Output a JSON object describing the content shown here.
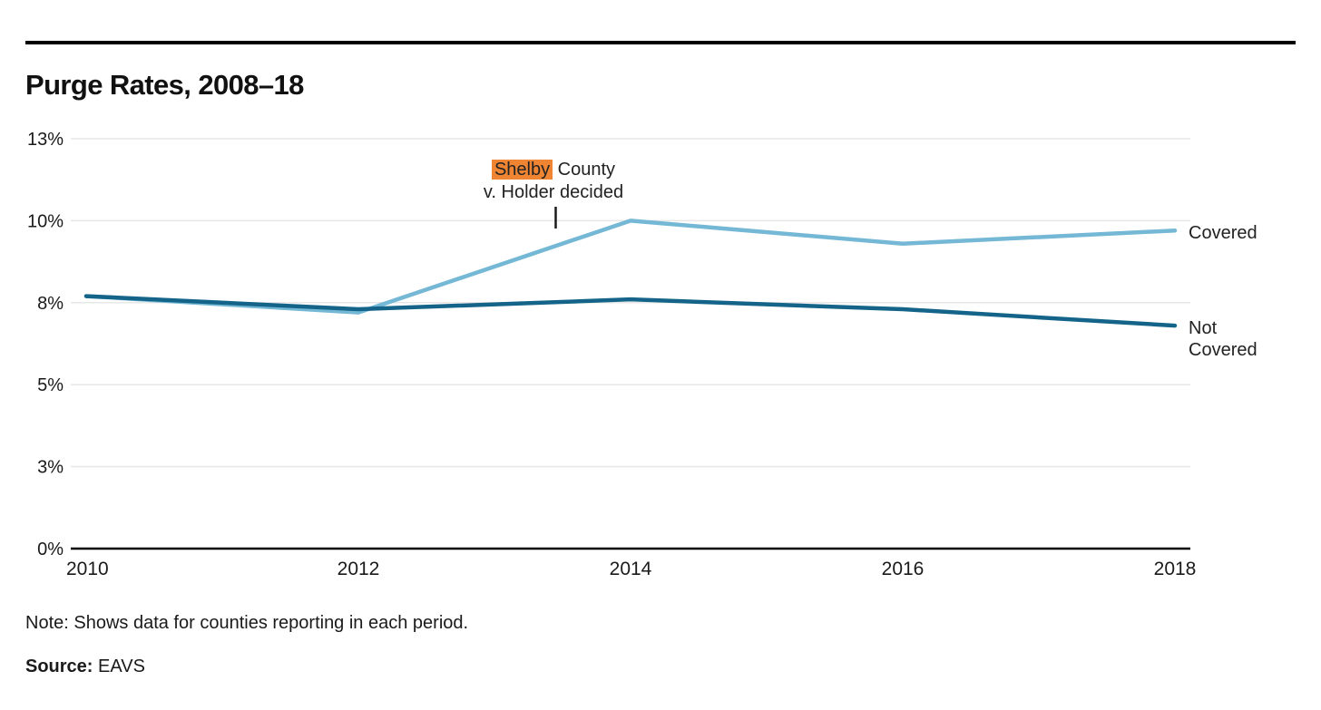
{
  "chart_data": {
    "type": "line",
    "title": "Purge Rates, 2008–18",
    "x": [
      2010,
      2012,
      2014,
      2016,
      2018
    ],
    "x_tick_labels": [
      "2010",
      "2012",
      "2014",
      "2016",
      "2018"
    ],
    "xlim": [
      2010,
      2018
    ],
    "ylim": [
      0,
      12.5
    ],
    "y_ticks": [
      {
        "value": 0,
        "label": "0%"
      },
      {
        "value": 2.5,
        "label": "3%"
      },
      {
        "value": 5,
        "label": "5%"
      },
      {
        "value": 7.5,
        "label": "8%"
      },
      {
        "value": 10,
        "label": "10%"
      },
      {
        "value": 12.5,
        "label": "13%"
      }
    ],
    "grid": true,
    "legend_position": "right-of-line-ends",
    "series": [
      {
        "name": "Covered",
        "values": [
          7.7,
          7.2,
          10.0,
          9.3,
          9.7
        ],
        "color": "#74b8d6"
      },
      {
        "name": "Not Covered",
        "values": [
          7.7,
          7.3,
          7.6,
          7.3,
          6.8
        ],
        "color": "#14648a"
      }
    ],
    "annotation": {
      "highlight_word": "Shelby",
      "line1_rest": "County",
      "line2": "v. Holder decided",
      "highlight_color": "#ef8533",
      "marker_year": 2013.45
    }
  },
  "labels": {
    "covered": "Covered",
    "not_covered": "Not Covered"
  },
  "note": "Note: Shows data for counties reporting in each period.",
  "source_label": "Source:",
  "source_value": "EAVS",
  "colors": {
    "grid": "#e7e7e7",
    "axis": "#000000",
    "text": "#1a1a1a",
    "accent_highlight": "#ef8533"
  }
}
